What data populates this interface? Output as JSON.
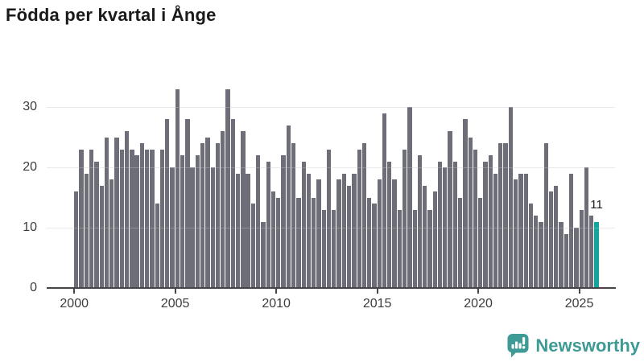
{
  "title": "Födda per kvartal i Ånge",
  "chart_data": {
    "type": "bar",
    "title": "Födda per kvartal i Ånge",
    "frequency": "quarterly",
    "x_start": "2000-Q1",
    "x_end": "2025-Q4",
    "values": [
      16,
      23,
      19,
      23,
      21,
      17,
      25,
      18,
      25,
      23,
      26,
      23,
      22,
      24,
      23,
      23,
      14,
      23,
      28,
      20,
      33,
      22,
      28,
      20,
      22,
      24,
      25,
      20,
      24,
      26,
      33,
      28,
      19,
      26,
      19,
      14,
      22,
      11,
      21,
      16,
      15,
      22,
      27,
      24,
      15,
      21,
      19,
      15,
      18,
      13,
      23,
      13,
      18,
      19,
      17,
      19,
      23,
      24,
      15,
      14,
      18,
      29,
      21,
      18,
      13,
      23,
      30,
      13,
      22,
      17,
      13,
      16,
      21,
      20,
      26,
      21,
      15,
      28,
      25,
      23,
      15,
      21,
      22,
      19,
      24,
      24,
      30,
      18,
      19,
      19,
      14,
      12,
      11,
      24,
      16,
      17,
      11,
      9,
      19,
      10,
      13,
      20,
      12,
      11
    ],
    "highlight": {
      "quarter": "2025-Q4",
      "value": 11,
      "label": "11"
    },
    "y_ticks": [
      0,
      10,
      20,
      30
    ],
    "x_ticks": [
      2000,
      2005,
      2010,
      2015,
      2020,
      2025
    ],
    "ylim": [
      0,
      34
    ],
    "grid": true,
    "legend": "none",
    "colors": {
      "bar": "#6e6e78",
      "highlight": "#11a59e"
    }
  },
  "branding": {
    "name": "Newsworthy",
    "color": "#3e9a94",
    "icon": "bar-chart-speech-bubble-icon"
  }
}
